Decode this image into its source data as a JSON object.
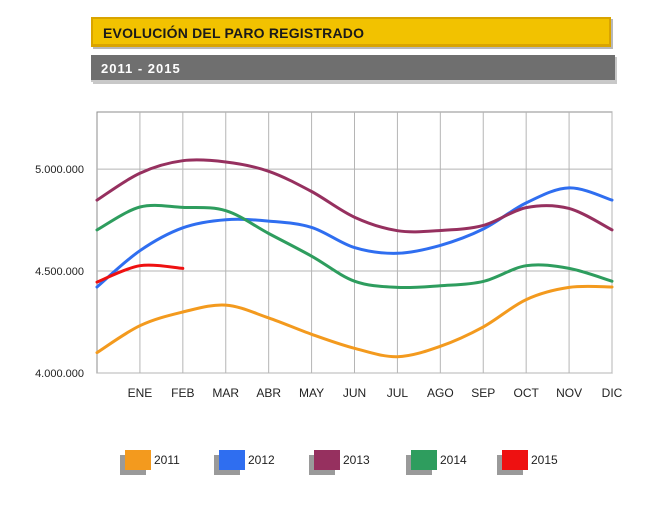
{
  "header": {
    "title": "EVOLUCIÓN DEL PARO REGISTRADO",
    "subtitle": "2011 - 2015"
  },
  "chart_data": {
    "type": "line",
    "title": "EVOLUCIÓN DEL PARO REGISTRADO",
    "subtitle": "2011 - 2015",
    "xlabel": "",
    "ylabel": "",
    "categories": [
      "",
      "ENE",
      "FEB",
      "MAR",
      "ABR",
      "MAY",
      "JUN",
      "JUL",
      "AGO",
      "SEP",
      "OCT",
      "NOV",
      "DIC"
    ],
    "y_ticks": [
      4000000,
      4500000,
      5000000
    ],
    "y_tick_labels": [
      "4.000.000",
      "4.500.000",
      "5.000.000"
    ],
    "ylim": [
      4000000,
      5280000
    ],
    "grid": true,
    "legend_position": "bottom",
    "series": [
      {
        "name": "2011",
        "color": "#f39a1e",
        "values": [
          4100000,
          4232000,
          4299000,
          4333000,
          4270000,
          4190000,
          4121000,
          4080000,
          4131000,
          4226000,
          4360000,
          4420000,
          4422000
        ]
      },
      {
        "name": "2012",
        "color": "#2f6ef0",
        "values": [
          4422000,
          4600000,
          4712000,
          4752000,
          4745000,
          4714000,
          4615000,
          4587000,
          4626000,
          4706000,
          4834000,
          4908000,
          4848000
        ]
      },
      {
        "name": "2013",
        "color": "#96305f",
        "values": [
          4848000,
          4980000,
          5041000,
          5035000,
          4989000,
          4890000,
          4764000,
          4698000,
          4699000,
          4724000,
          4811000,
          4807000,
          4702000
        ]
      },
      {
        "name": "2014",
        "color": "#2e9d5e",
        "values": [
          4702000,
          4814000,
          4812000,
          4796000,
          4684000,
          4573000,
          4450000,
          4420000,
          4428000,
          4449000,
          4526000,
          4513000,
          4450000
        ]
      },
      {
        "name": "2015",
        "color": "#ee1111",
        "values": [
          4446000,
          4526000,
          4513000,
          null,
          null,
          null,
          null,
          null,
          null,
          null,
          null,
          null,
          null
        ]
      }
    ]
  }
}
